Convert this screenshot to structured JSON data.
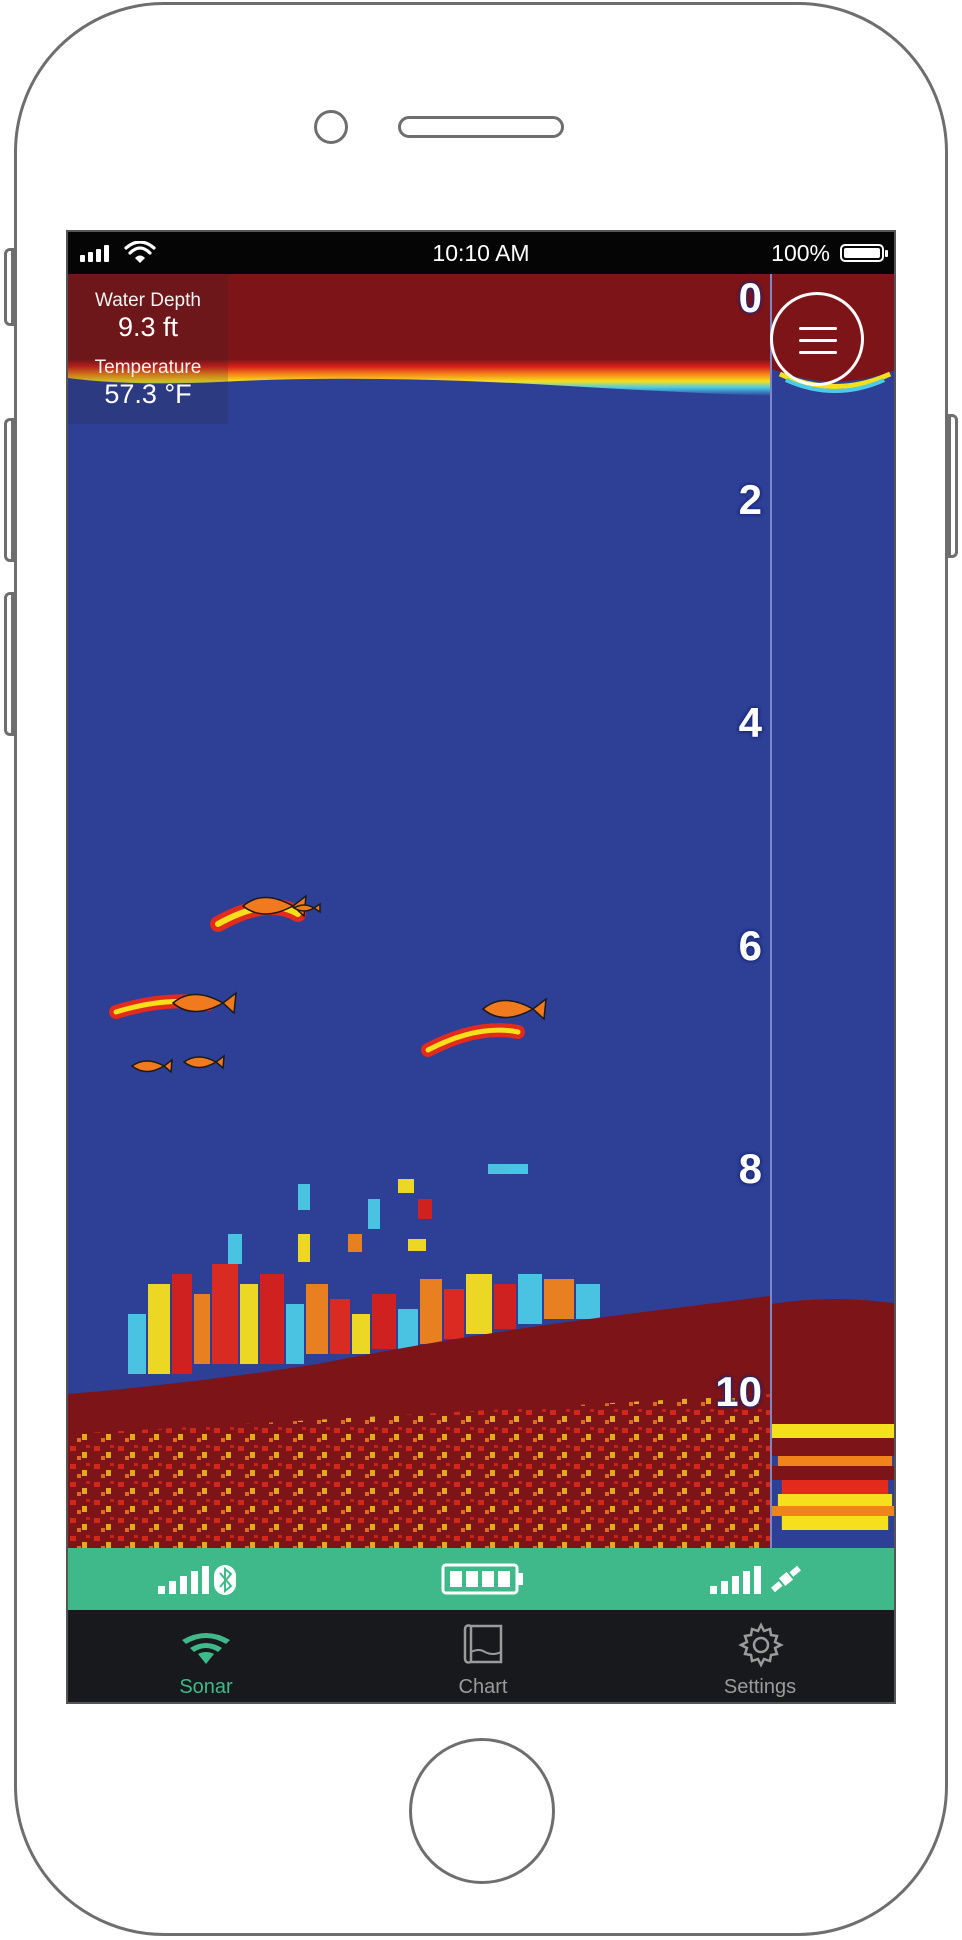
{
  "status_bar": {
    "time": "10:10 AM",
    "battery_text": "100%"
  },
  "info": {
    "water_depth_label": "Water Depth",
    "water_depth_value": "9.3 ft",
    "temperature_label": "Temperature",
    "temperature_value": "57.3 °F"
  },
  "depth_scale": [
    "0",
    "2",
    "4",
    "6",
    "8",
    "10"
  ],
  "tabs": [
    {
      "label": "Sonar",
      "icon": "sonar-icon",
      "active": true
    },
    {
      "label": "Chart",
      "icon": "chart-map-icon",
      "active": false
    },
    {
      "label": "Settings",
      "icon": "gear-icon",
      "active": false
    }
  ],
  "connection_bar": {
    "sonar_signal_icon": "bluetooth-signal-icon",
    "battery_icon": "device-battery-icon",
    "gps_signal_icon": "satellite-signal-icon"
  },
  "colors": {
    "water": "#2e3f96",
    "bottom": "#7d1418",
    "accent": "#3fb989",
    "tab_inactive": "#9b9b9b"
  }
}
